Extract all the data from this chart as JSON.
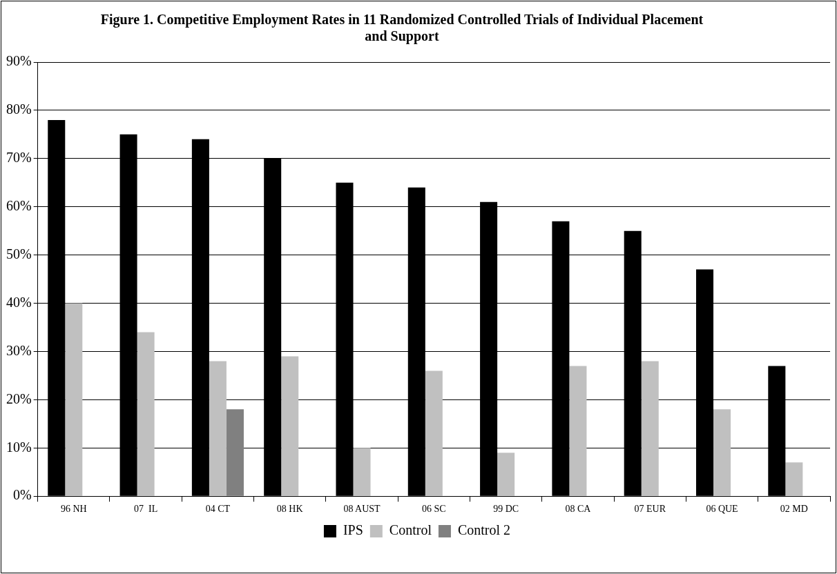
{
  "chart_data": {
    "type": "bar",
    "title": "Figure 1.  Competitive Employment Rates in 11 Randomized Controlled Trials of Individual Placement and Support",
    "categories": [
      "96 NH",
      "07  IL",
      "04 CT",
      "08 HK",
      "08 AUST",
      "06 SC",
      "99 DC",
      "08 CA",
      "07 EUR",
      "06 QUE",
      "02 MD"
    ],
    "series": [
      {
        "name": "IPS",
        "color": "#000000",
        "values": [
          78,
          75,
          74,
          70,
          65,
          64,
          61,
          57,
          55,
          47,
          27
        ]
      },
      {
        "name": "Control",
        "color": "#c0c0c0",
        "values": [
          40,
          34,
          28,
          29,
          10,
          26,
          9,
          27,
          28,
          18,
          7
        ]
      },
      {
        "name": "Control 2",
        "color": "#808080",
        "values": [
          null,
          null,
          18,
          null,
          null,
          null,
          null,
          null,
          null,
          null,
          null
        ]
      }
    ],
    "ylim": [
      0,
      90
    ],
    "yticks": [
      {
        "value": 0,
        "label": "0%"
      },
      {
        "value": 10,
        "label": "10%"
      },
      {
        "value": 20,
        "label": "20%"
      },
      {
        "value": 30,
        "label": "30%"
      },
      {
        "value": 40,
        "label": "40%"
      },
      {
        "value": 50,
        "label": "50%"
      },
      {
        "value": 60,
        "label": "60%"
      },
      {
        "value": 70,
        "label": "70%"
      },
      {
        "value": 80,
        "label": "80%"
      },
      {
        "value": 90,
        "label": "90%"
      }
    ],
    "grid": "y",
    "legend": "bottom"
  }
}
